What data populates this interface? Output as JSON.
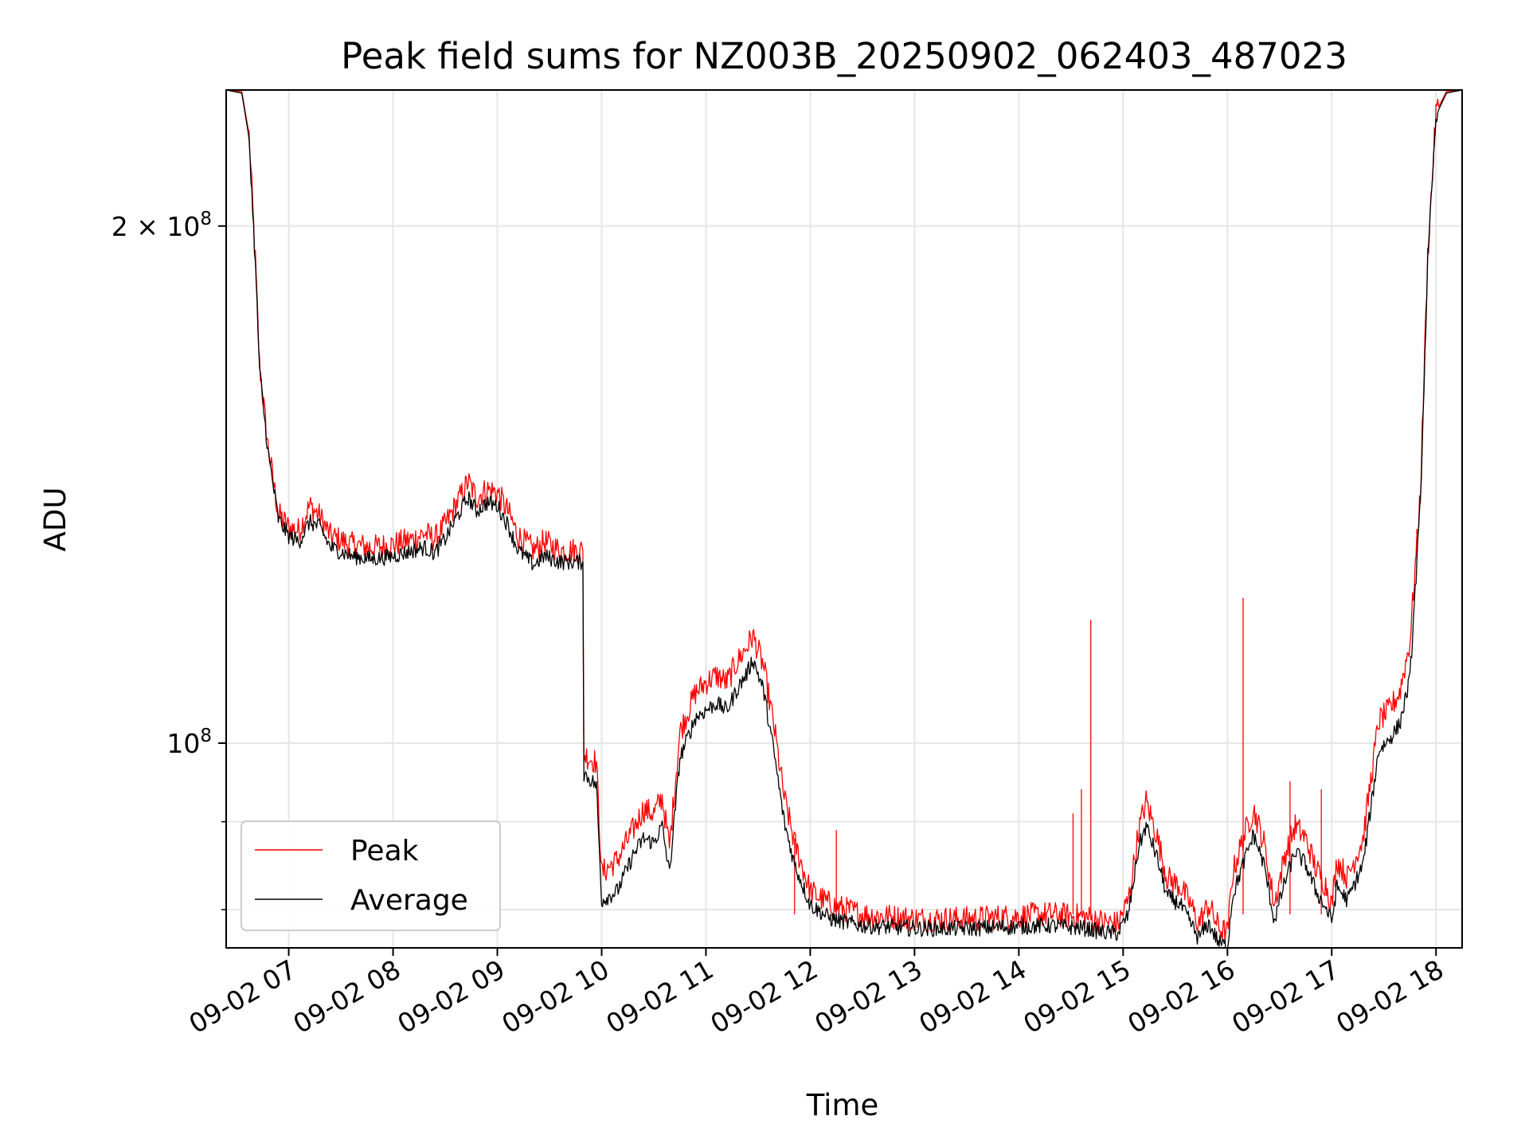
{
  "chart_data": {
    "type": "line",
    "title": "Peak field sums for NZ003B_20250902_062403_487023",
    "xlabel": "Time",
    "ylabel": "ADU",
    "x_ticks": [
      "09-02 07",
      "09-02 08",
      "09-02 09",
      "09-02 10",
      "09-02 11",
      "09-02 12",
      "09-02 13",
      "09-02 14",
      "09-02 15",
      "09-02 16",
      "09-02 17",
      "09-02 18"
    ],
    "y_major_ticks": [
      {
        "value": 100000000,
        "mantissa": "",
        "exponent": "8"
      },
      {
        "value": 200000000,
        "mantissa": "2",
        "exponent": "8"
      }
    ],
    "y_minor_ticks": [
      80000000,
      90000000
    ],
    "x_range_hours": [
      6.4,
      18.25
    ],
    "y_range": [
      76000000,
      240000000
    ],
    "y_scale": "log",
    "grid": true,
    "legend_position": "lower left",
    "legend": [
      {
        "label": "Peak",
        "color": "#ff0000"
      },
      {
        "label": "Average",
        "color": "#000000"
      }
    ],
    "x_unit": "hour of 2025-09-02",
    "series": [
      {
        "name": "Average",
        "color": "#000000",
        "points": [
          [
            6.4,
            240000000
          ],
          [
            6.55,
            239000000
          ],
          [
            6.62,
            225000000
          ],
          [
            6.68,
            190000000
          ],
          [
            6.72,
            165000000
          ],
          [
            6.8,
            148000000
          ],
          [
            6.9,
            135000000
          ],
          [
            7.0,
            132000000
          ],
          [
            7.1,
            131000000
          ],
          [
            7.2,
            134500000
          ],
          [
            7.3,
            133500000
          ],
          [
            7.4,
            130000000
          ],
          [
            7.6,
            128500000
          ],
          [
            7.8,
            128000000
          ],
          [
            8.0,
            128500000
          ],
          [
            8.2,
            129500000
          ],
          [
            8.3,
            130000000
          ],
          [
            8.4,
            129000000
          ],
          [
            8.5,
            131500000
          ],
          [
            8.6,
            135000000
          ],
          [
            8.72,
            139000000
          ],
          [
            8.8,
            136500000
          ],
          [
            8.9,
            138000000
          ],
          [
            9.0,
            137500000
          ],
          [
            9.1,
            134000000
          ],
          [
            9.2,
            129500000
          ],
          [
            9.35,
            127000000
          ],
          [
            9.45,
            128500000
          ],
          [
            9.6,
            127500000
          ],
          [
            9.82,
            127500000
          ],
          [
            9.83,
            96000000
          ],
          [
            9.95,
            94500000
          ],
          [
            10.0,
            81000000
          ],
          [
            10.15,
            82000000
          ],
          [
            10.3,
            86000000
          ],
          [
            10.4,
            88000000
          ],
          [
            10.5,
            87500000
          ],
          [
            10.58,
            89500000
          ],
          [
            10.65,
            84000000
          ],
          [
            10.75,
            98000000
          ],
          [
            10.9,
            103500000
          ],
          [
            11.0,
            104500000
          ],
          [
            11.1,
            105500000
          ],
          [
            11.2,
            104500000
          ],
          [
            11.3,
            107500000
          ],
          [
            11.4,
            110000000
          ],
          [
            11.45,
            112000000
          ],
          [
            11.55,
            107500000
          ],
          [
            11.65,
            99000000
          ],
          [
            11.75,
            90000000
          ],
          [
            11.85,
            85000000
          ],
          [
            12.0,
            80500000
          ],
          [
            12.2,
            79000000
          ],
          [
            12.5,
            78300000
          ],
          [
            13.0,
            78000000
          ],
          [
            13.5,
            78000000
          ],
          [
            14.0,
            78200000
          ],
          [
            14.3,
            78300000
          ],
          [
            14.65,
            78000000
          ],
          [
            14.8,
            77600000
          ],
          [
            14.95,
            77500000
          ],
          [
            15.05,
            79500000
          ],
          [
            15.15,
            87000000
          ],
          [
            15.22,
            89500000
          ],
          [
            15.32,
            86000000
          ],
          [
            15.42,
            81500000
          ],
          [
            15.55,
            80500000
          ],
          [
            15.65,
            78500000
          ],
          [
            15.72,
            77000000
          ],
          [
            15.82,
            78500000
          ],
          [
            15.92,
            76500000
          ],
          [
            16.0,
            76200000
          ],
          [
            16.05,
            81500000
          ],
          [
            16.15,
            85000000
          ],
          [
            16.25,
            88500000
          ],
          [
            16.35,
            85000000
          ],
          [
            16.45,
            78800000
          ],
          [
            16.55,
            83000000
          ],
          [
            16.65,
            86500000
          ],
          [
            16.75,
            85000000
          ],
          [
            16.85,
            82000000
          ],
          [
            16.95,
            80000000
          ],
          [
            17.0,
            78800000
          ],
          [
            17.05,
            82500000
          ],
          [
            17.15,
            81000000
          ],
          [
            17.3,
            85000000
          ],
          [
            17.45,
            99000000
          ],
          [
            17.55,
            100500000
          ],
          [
            17.65,
            102500000
          ],
          [
            17.75,
            109000000
          ],
          [
            17.85,
            138000000
          ],
          [
            17.92,
            190000000
          ],
          [
            18.0,
            232000000
          ],
          [
            18.1,
            239000000
          ],
          [
            18.25,
            240000000
          ]
        ]
      },
      {
        "name": "Peak",
        "color": "#ff0000",
        "points": [
          [
            6.4,
            240000000
          ],
          [
            6.55,
            239500000
          ],
          [
            6.62,
            226000000
          ],
          [
            6.68,
            191000000
          ],
          [
            6.72,
            166000000
          ],
          [
            6.8,
            149000000
          ],
          [
            6.9,
            136000000
          ],
          [
            7.0,
            133500000
          ],
          [
            7.1,
            133000000
          ],
          [
            7.2,
            137500000
          ],
          [
            7.3,
            135500000
          ],
          [
            7.4,
            132000000
          ],
          [
            7.6,
            130500000
          ],
          [
            7.8,
            130000000
          ],
          [
            8.0,
            130500000
          ],
          [
            8.2,
            131500000
          ],
          [
            8.3,
            132500000
          ],
          [
            8.4,
            131500000
          ],
          [
            8.5,
            134000000
          ],
          [
            8.6,
            137500000
          ],
          [
            8.72,
            142000000
          ],
          [
            8.8,
            139000000
          ],
          [
            8.9,
            140500000
          ],
          [
            9.0,
            140000000
          ],
          [
            9.1,
            136500000
          ],
          [
            9.2,
            132000000
          ],
          [
            9.35,
            129500000
          ],
          [
            9.45,
            131000000
          ],
          [
            9.6,
            129500000
          ],
          [
            9.82,
            129500000
          ],
          [
            9.83,
            98500000
          ],
          [
            9.95,
            97500000
          ],
          [
            10.0,
            84000000
          ],
          [
            10.15,
            85500000
          ],
          [
            10.3,
            89000000
          ],
          [
            10.4,
            91500000
          ],
          [
            10.5,
            91000000
          ],
          [
            10.58,
            93000000
          ],
          [
            10.65,
            87000000
          ],
          [
            10.75,
            101500000
          ],
          [
            10.9,
            107000000
          ],
          [
            11.0,
            108500000
          ],
          [
            11.1,
            109500000
          ],
          [
            11.2,
            108500000
          ],
          [
            11.3,
            111500000
          ],
          [
            11.4,
            114000000
          ],
          [
            11.45,
            115500000
          ],
          [
            11.55,
            111000000
          ],
          [
            11.65,
            102500000
          ],
          [
            11.75,
            93000000
          ],
          [
            11.85,
            87500000
          ],
          [
            12.0,
            82000000
          ],
          [
            12.2,
            80500000
          ],
          [
            12.5,
            79500000
          ],
          [
            13.0,
            79000000
          ],
          [
            13.5,
            79000000
          ],
          [
            14.0,
            79300000
          ],
          [
            14.3,
            79500000
          ],
          [
            14.65,
            79200000
          ],
          [
            14.8,
            78700000
          ],
          [
            14.95,
            78500000
          ],
          [
            15.05,
            81000000
          ],
          [
            15.15,
            89000000
          ],
          [
            15.22,
            92500000
          ],
          [
            15.32,
            88500000
          ],
          [
            15.42,
            83500000
          ],
          [
            15.55,
            82500000
          ],
          [
            15.65,
            80500000
          ],
          [
            15.72,
            78500000
          ],
          [
            15.82,
            80500000
          ],
          [
            15.92,
            78000000
          ],
          [
            16.0,
            77500000
          ],
          [
            16.05,
            84000000
          ],
          [
            16.15,
            88000000
          ],
          [
            16.25,
            91500000
          ],
          [
            16.35,
            87500000
          ],
          [
            16.45,
            80500000
          ],
          [
            16.55,
            86000000
          ],
          [
            16.65,
            89500000
          ],
          [
            16.75,
            88000000
          ],
          [
            16.85,
            84500000
          ],
          [
            16.95,
            82500000
          ],
          [
            17.0,
            80500000
          ],
          [
            17.05,
            85500000
          ],
          [
            17.15,
            83500000
          ],
          [
            17.3,
            88000000
          ],
          [
            17.45,
            103000000
          ],
          [
            17.55,
            104500000
          ],
          [
            17.65,
            107000000
          ],
          [
            17.75,
            114500000
          ],
          [
            17.85,
            140000000
          ],
          [
            17.92,
            192000000
          ],
          [
            18.0,
            233000000
          ],
          [
            18.1,
            239500000
          ],
          [
            18.25,
            240000000
          ]
        ]
      }
    ],
    "peak_spikes": [
      [
        14.69,
        118000000
      ],
      [
        16.15,
        121500000
      ],
      [
        14.6,
        94000000
      ],
      [
        14.52,
        91000000
      ],
      [
        11.85,
        88000000
      ],
      [
        12.25,
        89000000
      ],
      [
        16.6,
        95000000
      ],
      [
        16.9,
        94000000
      ]
    ]
  }
}
